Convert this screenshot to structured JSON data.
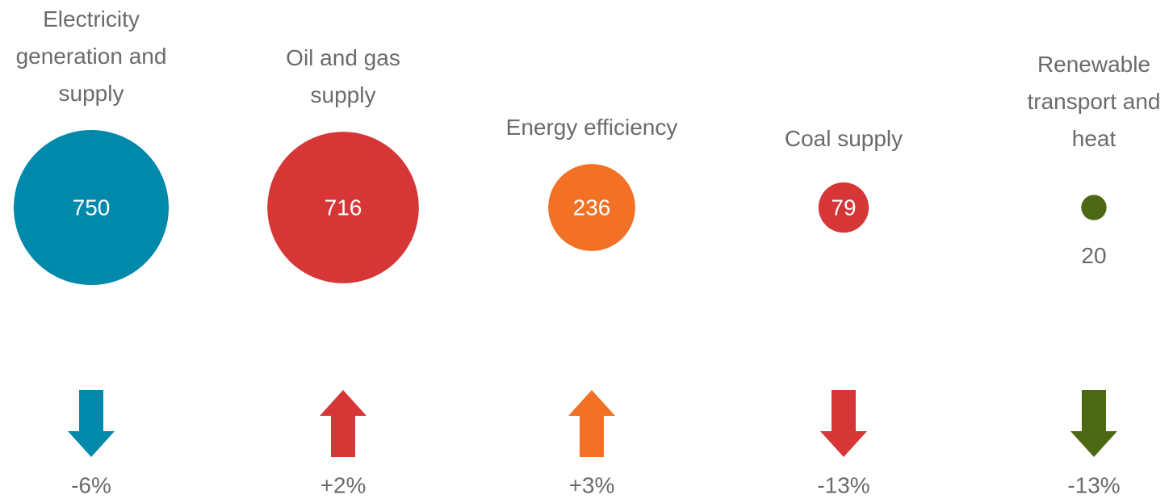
{
  "chart_data": {
    "type": "bubble",
    "categories": [
      "Electricity generation and supply",
      "Oil and gas supply",
      "Energy efficiency",
      "Coal supply",
      "Renewable transport and heat"
    ],
    "values": [
      750,
      716,
      236,
      79,
      20
    ],
    "colors": [
      "#0089aa",
      "#d63636",
      "#f27124",
      "#d63636",
      "#4d6812"
    ],
    "changes": [
      -6,
      2,
      3,
      -13,
      -13
    ],
    "change_labels": [
      "-6%",
      "+2%",
      "+3%",
      "-13%",
      "-13%"
    ]
  }
}
